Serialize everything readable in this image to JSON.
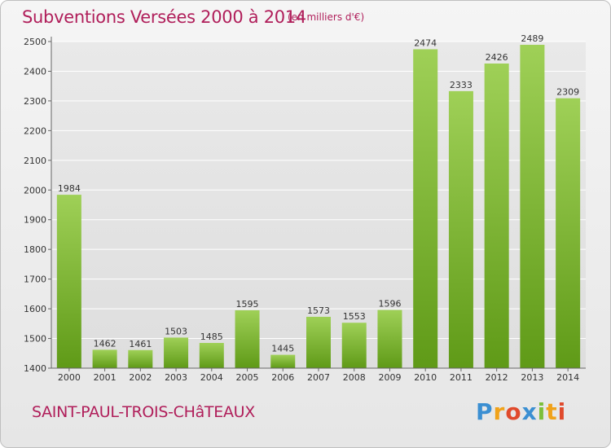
{
  "header": {
    "title": "Subventions Versées 2000 à 2014",
    "subtitle": "(en milliers d'€)"
  },
  "footer": {
    "place": "SAINT-PAUL-TROIS-CHâTEAUX",
    "logo_text": "Proxiti"
  },
  "colors": {
    "title": "#b01e5a",
    "bar_light": "#9fd057",
    "bar_dark": "#5f9a17",
    "grid": "#ffffff"
  },
  "chart_data": {
    "type": "bar",
    "title": "Subventions Versées 2000 à 2014",
    "subtitle": "(en milliers d'€)",
    "xlabel": "",
    "ylabel": "",
    "categories": [
      "2000",
      "2001",
      "2002",
      "2003",
      "2004",
      "2005",
      "2006",
      "2007",
      "2008",
      "2009",
      "2010",
      "2011",
      "2012",
      "2013",
      "2014"
    ],
    "values": [
      1984,
      1462,
      1461,
      1503,
      1485,
      1595,
      1445,
      1573,
      1553,
      1596,
      2474,
      2333,
      2426,
      2489,
      2309
    ],
    "ylim": [
      1400,
      2500
    ],
    "yticks": [
      1400,
      1500,
      1600,
      1700,
      1800,
      1900,
      2000,
      2100,
      2200,
      2300,
      2400,
      2500
    ],
    "grid": true,
    "data_labels": true
  }
}
